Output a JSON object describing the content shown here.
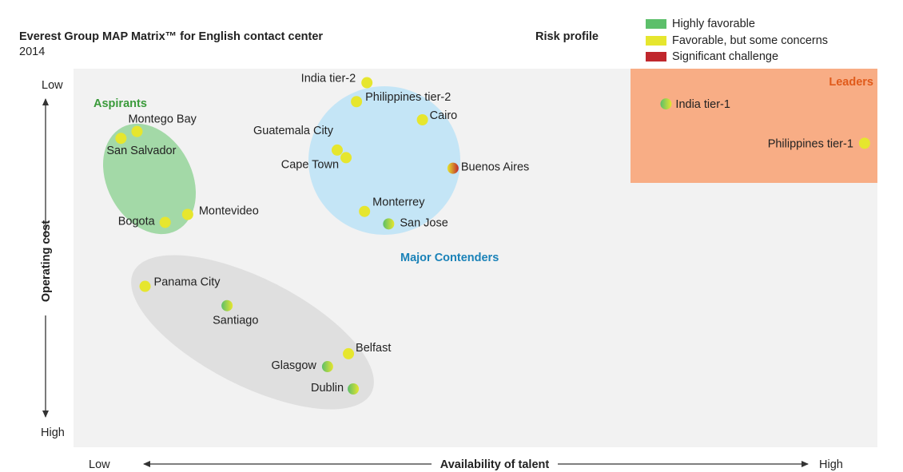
{
  "header": {
    "title": "Everest Group MAP Matrix™ for English contact center",
    "subtitle": "2014",
    "risk_profile_title": "Risk profile"
  },
  "legend": [
    {
      "label": "Highly favorable",
      "color": "#5cbf6a"
    },
    {
      "label": "Favorable, but some concerns",
      "color": "#e6e62e"
    },
    {
      "label": "Significant challenge",
      "color": "#c0272d"
    }
  ],
  "colors": {
    "plot_background": "#f2f2f2",
    "leaders_zone": "#f8ad85",
    "aspirants_zone": "#8fd293",
    "major_contenders_zone": "#bfe3f6",
    "emerging_zone": "#dcdcdc",
    "aspirants_text": "#3a9a3a",
    "major_contenders_text": "#1a82b8",
    "leaders_text": "#e05a1a"
  },
  "chart_data": {
    "type": "scatter",
    "title": "Everest Group MAP Matrix™ for English contact center",
    "subtitle": "2014",
    "xlabel": "Availability of talent",
    "ylabel": "Operating cost",
    "x_axis_ends": {
      "low": "Low",
      "high": "High"
    },
    "y_axis_ends": {
      "top": "Low",
      "bottom": "High"
    },
    "xlim": [
      0,
      100
    ],
    "ylim": [
      0,
      100
    ],
    "y_direction": "top is Low operating cost",
    "groups": {
      "aspirants": "Aspirants",
      "major_contenders": "Major Contenders",
      "leaders": "Leaders"
    },
    "points": [
      {
        "name": "India tier-2",
        "x": 36.5,
        "y": 96.3,
        "risk": "favorable",
        "group": "major_contenders"
      },
      {
        "name": "Philippines tier-2",
        "x": 35.2,
        "y": 91.3,
        "risk": "favorable",
        "group": "major_contenders"
      },
      {
        "name": "Cairo",
        "x": 43.4,
        "y": 86.5,
        "risk": "favorable",
        "group": "major_contenders"
      },
      {
        "name": "Guatemala City",
        "x": 32.8,
        "y": 78.5,
        "risk": "favorable",
        "group": "major_contenders"
      },
      {
        "name": "Cape Town",
        "x": 33.9,
        "y": 76.5,
        "risk": "favorable",
        "group": "major_contenders"
      },
      {
        "name": "Buenos Aires",
        "x": 47.2,
        "y": 73.7,
        "risk": "mixed-challenge",
        "group": "major_contenders"
      },
      {
        "name": "Monterrey",
        "x": 36.2,
        "y": 62.3,
        "risk": "favorable",
        "group": "major_contenders"
      },
      {
        "name": "San Jose",
        "x": 39.2,
        "y": 59.0,
        "risk": "mixed-favorable",
        "group": "major_contenders"
      },
      {
        "name": "Montego Bay",
        "x": 7.9,
        "y": 83.4,
        "risk": "favorable",
        "group": "aspirants"
      },
      {
        "name": "San Salvador",
        "x": 5.9,
        "y": 81.6,
        "risk": "favorable",
        "group": "aspirants"
      },
      {
        "name": "Montevideo",
        "x": 14.2,
        "y": 61.5,
        "risk": "favorable",
        "group": "aspirants"
      },
      {
        "name": "Bogota",
        "x": 11.4,
        "y": 59.4,
        "risk": "favorable",
        "group": "aspirants"
      },
      {
        "name": "Panama City",
        "x": 8.9,
        "y": 42.5,
        "risk": "favorable",
        "group": "emerging"
      },
      {
        "name": "Santiago",
        "x": 19.1,
        "y": 37.4,
        "risk": "mixed-favorable",
        "group": "emerging"
      },
      {
        "name": "Belfast",
        "x": 34.2,
        "y": 24.7,
        "risk": "favorable",
        "group": "emerging"
      },
      {
        "name": "Glasgow",
        "x": 31.6,
        "y": 21.3,
        "risk": "mixed-favorable",
        "group": "emerging"
      },
      {
        "name": "Dublin",
        "x": 34.8,
        "y": 15.4,
        "risk": "mixed-favorable",
        "group": "emerging"
      },
      {
        "name": "India tier-1",
        "x": 73.7,
        "y": 90.7,
        "risk": "mixed-favorable",
        "group": "leaders"
      },
      {
        "name": "Philippines tier-1",
        "x": 98.4,
        "y": 80.3,
        "risk": "favorable",
        "group": "leaders"
      }
    ]
  }
}
